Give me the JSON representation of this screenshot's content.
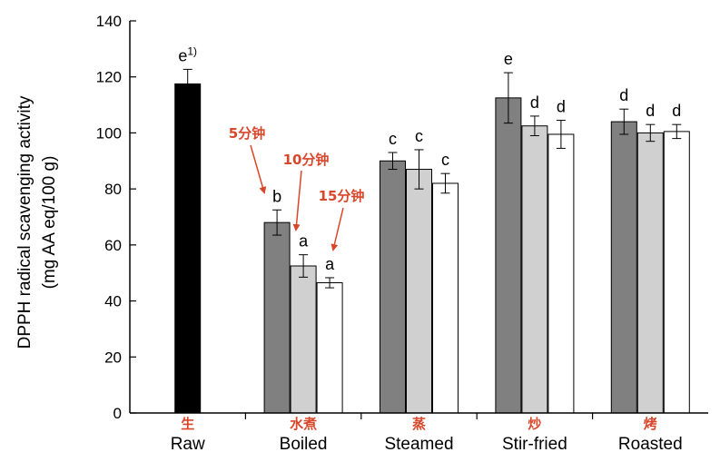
{
  "chart_data": {
    "type": "bar",
    "ylabel_line1": "DPPH radical scavenging activity",
    "ylabel_line2": "(mg AA eq/100 g)",
    "ylim": [
      0,
      140
    ],
    "yticks": [
      "0",
      "20",
      "40",
      "60",
      "80",
      "100",
      "120",
      "140"
    ],
    "accent_color": "#d9472b",
    "categories": [
      {
        "name": "Raw",
        "name_cn": "生"
      },
      {
        "name": "Boiled",
        "name_cn": "水煮"
      },
      {
        "name": "Steamed",
        "name_cn": "蒸"
      },
      {
        "name": "Stir-fried",
        "name_cn": "炒"
      },
      {
        "name": "Roasted",
        "name_cn": "烤"
      }
    ],
    "bars": [
      {
        "category": "Raw",
        "series": "raw",
        "value": 117.5,
        "error": 5.2,
        "label": "e",
        "superscript": "1)"
      },
      {
        "category": "Boiled",
        "series": "5分钟",
        "value": 68.0,
        "error": 4.5,
        "label": "b"
      },
      {
        "category": "Boiled",
        "series": "10分钟",
        "value": 52.5,
        "error": 4.0,
        "label": "a"
      },
      {
        "category": "Boiled",
        "series": "15分钟",
        "value": 46.5,
        "error": 1.8,
        "label": "a"
      },
      {
        "category": "Steamed",
        "series": "5分钟",
        "value": 90.0,
        "error": 3.0,
        "label": "c"
      },
      {
        "category": "Steamed",
        "series": "10分钟",
        "value": 87.0,
        "error": 7.0,
        "label": "c"
      },
      {
        "category": "Steamed",
        "series": "15分钟",
        "value": 82.0,
        "error": 3.5,
        "label": "c"
      },
      {
        "category": "Stir-fried",
        "series": "5分钟",
        "value": 112.5,
        "error": 9.0,
        "label": "e"
      },
      {
        "category": "Stir-fried",
        "series": "10分钟",
        "value": 102.5,
        "error": 3.5,
        "label": "d"
      },
      {
        "category": "Stir-fried",
        "series": "15分钟",
        "value": 99.5,
        "error": 5.0,
        "label": "d"
      },
      {
        "category": "Roasted",
        "series": "5分钟",
        "value": 104.0,
        "error": 4.5,
        "label": "d"
      },
      {
        "category": "Roasted",
        "series": "10分钟",
        "value": 100.0,
        "error": 3.0,
        "label": "d"
      },
      {
        "category": "Roasted",
        "series": "15分钟",
        "value": 100.5,
        "error": 2.5,
        "label": "d"
      }
    ],
    "series_colors": {
      "raw": "#000000",
      "5分钟": "#808080",
      "10分钟": "#d0d0d0",
      "15分钟": "#ffffff"
    },
    "annotations": [
      {
        "text": "5分钟",
        "series": "5分钟"
      },
      {
        "text": "10分钟",
        "series": "10分钟"
      },
      {
        "text": "15分钟",
        "series": "15分钟"
      }
    ]
  }
}
